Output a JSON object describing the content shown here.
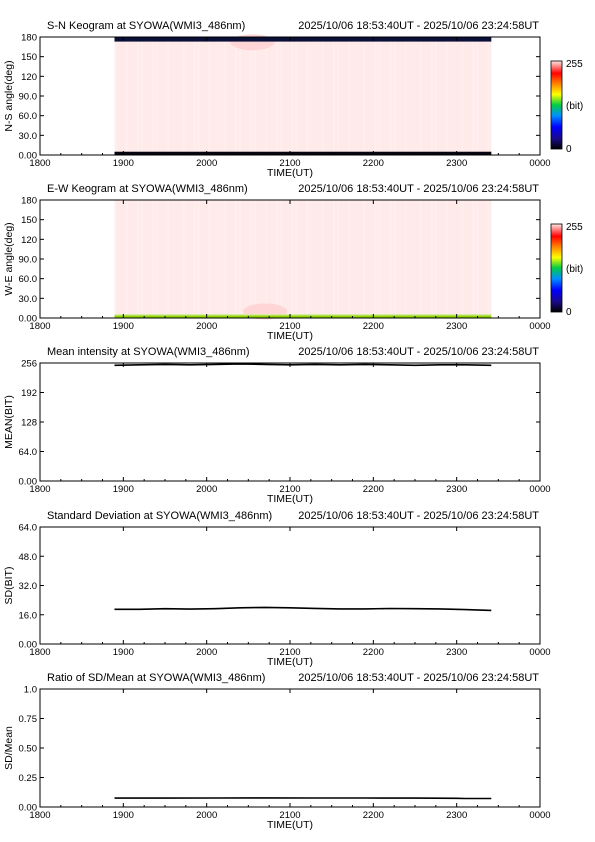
{
  "chart_data": [
    {
      "id": "sn",
      "type": "heatmap",
      "title": "S-N Keogram at SYOWA(WMI3_486nm)",
      "date_range": "2025/10/06 18:53:40UT - 2025/10/06 23:24:58UT",
      "xlabel": "TIME(UT)",
      "ylabel": "N-S angle(deg)",
      "x_ticks": [
        "1800",
        "1900",
        "2000",
        "2100",
        "2200",
        "2300",
        "0000"
      ],
      "xlim_hours": [
        18,
        24
      ],
      "y_ticks": [
        "0.00",
        "30.0",
        "60.0",
        "90.0",
        "120",
        "150",
        "180"
      ],
      "ylim": [
        0,
        180
      ],
      "data_hours": [
        18.894,
        23.416
      ],
      "colorbar": {
        "min_label": "0",
        "max_label": "255",
        "unit_label": "(bit)"
      },
      "background_color": "#ffeaea",
      "edge_bands": [
        {
          "y_from": 173,
          "y_to": 180,
          "color": "#0a0f38"
        },
        {
          "y_from": 0,
          "y_to": 5,
          "color": "#050510"
        }
      ],
      "bright_spot": {
        "hour": 20.55,
        "angle": 172,
        "color": "#ffcfcf"
      }
    },
    {
      "id": "ew",
      "type": "heatmap",
      "title": "E-W Keogram at SYOWA(WMI3_486nm)",
      "date_range": "2025/10/06 18:53:40UT - 2025/10/06 23:24:58UT",
      "xlabel": "TIME(UT)",
      "ylabel": "W-E angle(deg)",
      "x_ticks": [
        "1800",
        "1900",
        "2000",
        "2100",
        "2200",
        "2300",
        "0000"
      ],
      "xlim_hours": [
        18,
        24
      ],
      "y_ticks": [
        "0.00",
        "30.0",
        "60.0",
        "90.0",
        "120",
        "150",
        "180"
      ],
      "ylim": [
        0,
        180
      ],
      "data_hours": [
        18.894,
        23.416
      ],
      "colorbar": {
        "min_label": "0",
        "max_label": "255",
        "unit_label": "(bit)"
      },
      "background_color": "#ffeaea",
      "edge_bands": [
        {
          "y_from": 0,
          "y_to": 4,
          "color": "#8fd400"
        },
        {
          "y_from": 4,
          "y_to": 6,
          "color": "#d6ec9a"
        }
      ],
      "bright_spot": {
        "hour": 20.7,
        "angle": 10,
        "color": "#ffcfcf"
      }
    },
    {
      "id": "mean",
      "type": "line",
      "title": "Mean intensity at SYOWA(WMI3_486nm)",
      "date_range": "2025/10/06 18:53:40UT - 2025/10/06 23:24:58UT",
      "xlabel": "TIME(UT)",
      "ylabel": "MEAN(BIT)",
      "x_ticks": [
        "1800",
        "1900",
        "2000",
        "2100",
        "2200",
        "2300",
        "0000"
      ],
      "xlim_hours": [
        18,
        24
      ],
      "y_ticks": [
        "0.00",
        "64.0",
        "128",
        "192",
        "256"
      ],
      "ylim": [
        0,
        256
      ],
      "x": [
        18.894,
        19.2,
        19.5,
        19.8,
        20.1,
        20.4,
        20.7,
        21.0,
        21.3,
        21.6,
        21.9,
        22.2,
        22.5,
        22.8,
        23.1,
        23.416
      ],
      "y": [
        251,
        252,
        253,
        252,
        253,
        254,
        253,
        252,
        253,
        252,
        253,
        252,
        251,
        252,
        252,
        251
      ]
    },
    {
      "id": "sd",
      "type": "line",
      "title": "Standard Deviation at SYOWA(WMI3_486nm)",
      "date_range": "2025/10/06 18:53:40UT - 2025/10/06 23:24:58UT",
      "xlabel": "TIME(UT)",
      "ylabel": "SD(BIT)",
      "x_ticks": [
        "1800",
        "1900",
        "2000",
        "2100",
        "2200",
        "2300",
        "0000"
      ],
      "xlim_hours": [
        18,
        24
      ],
      "y_ticks": [
        "0.00",
        "16.0",
        "32.0",
        "48.0",
        "64.0"
      ],
      "ylim": [
        0,
        64
      ],
      "x": [
        18.894,
        19.2,
        19.5,
        19.8,
        20.1,
        20.4,
        20.7,
        21.0,
        21.3,
        21.6,
        21.9,
        22.2,
        22.5,
        22.8,
        23.1,
        23.416
      ],
      "y": [
        19.0,
        19.0,
        19.3,
        19.1,
        19.3,
        19.8,
        20.0,
        19.8,
        19.5,
        19.2,
        19.2,
        19.4,
        19.3,
        19.2,
        18.8,
        18.4
      ]
    },
    {
      "id": "ratio",
      "type": "line",
      "title": "Ratio of SD/Mean at SYOWA(WMI3_486nm)",
      "date_range": "2025/10/06 18:53:40UT - 2025/10/06 23:24:58UT",
      "xlabel": "TIME(UT)",
      "ylabel": "SD/Mean",
      "x_ticks": [
        "1800",
        "1900",
        "2000",
        "2100",
        "2200",
        "2300",
        "0000"
      ],
      "xlim_hours": [
        18,
        24
      ],
      "y_ticks": [
        "0.00",
        "0.25",
        "0.50",
        "0.75",
        "1.0"
      ],
      "ylim": [
        0,
        1.0
      ],
      "x": [
        18.894,
        19.5,
        20.1,
        20.7,
        21.3,
        21.9,
        22.5,
        23.0,
        23.1,
        23.416
      ],
      "y": [
        0.075,
        0.075,
        0.076,
        0.077,
        0.076,
        0.076,
        0.075,
        0.074,
        0.072,
        0.072
      ]
    }
  ]
}
